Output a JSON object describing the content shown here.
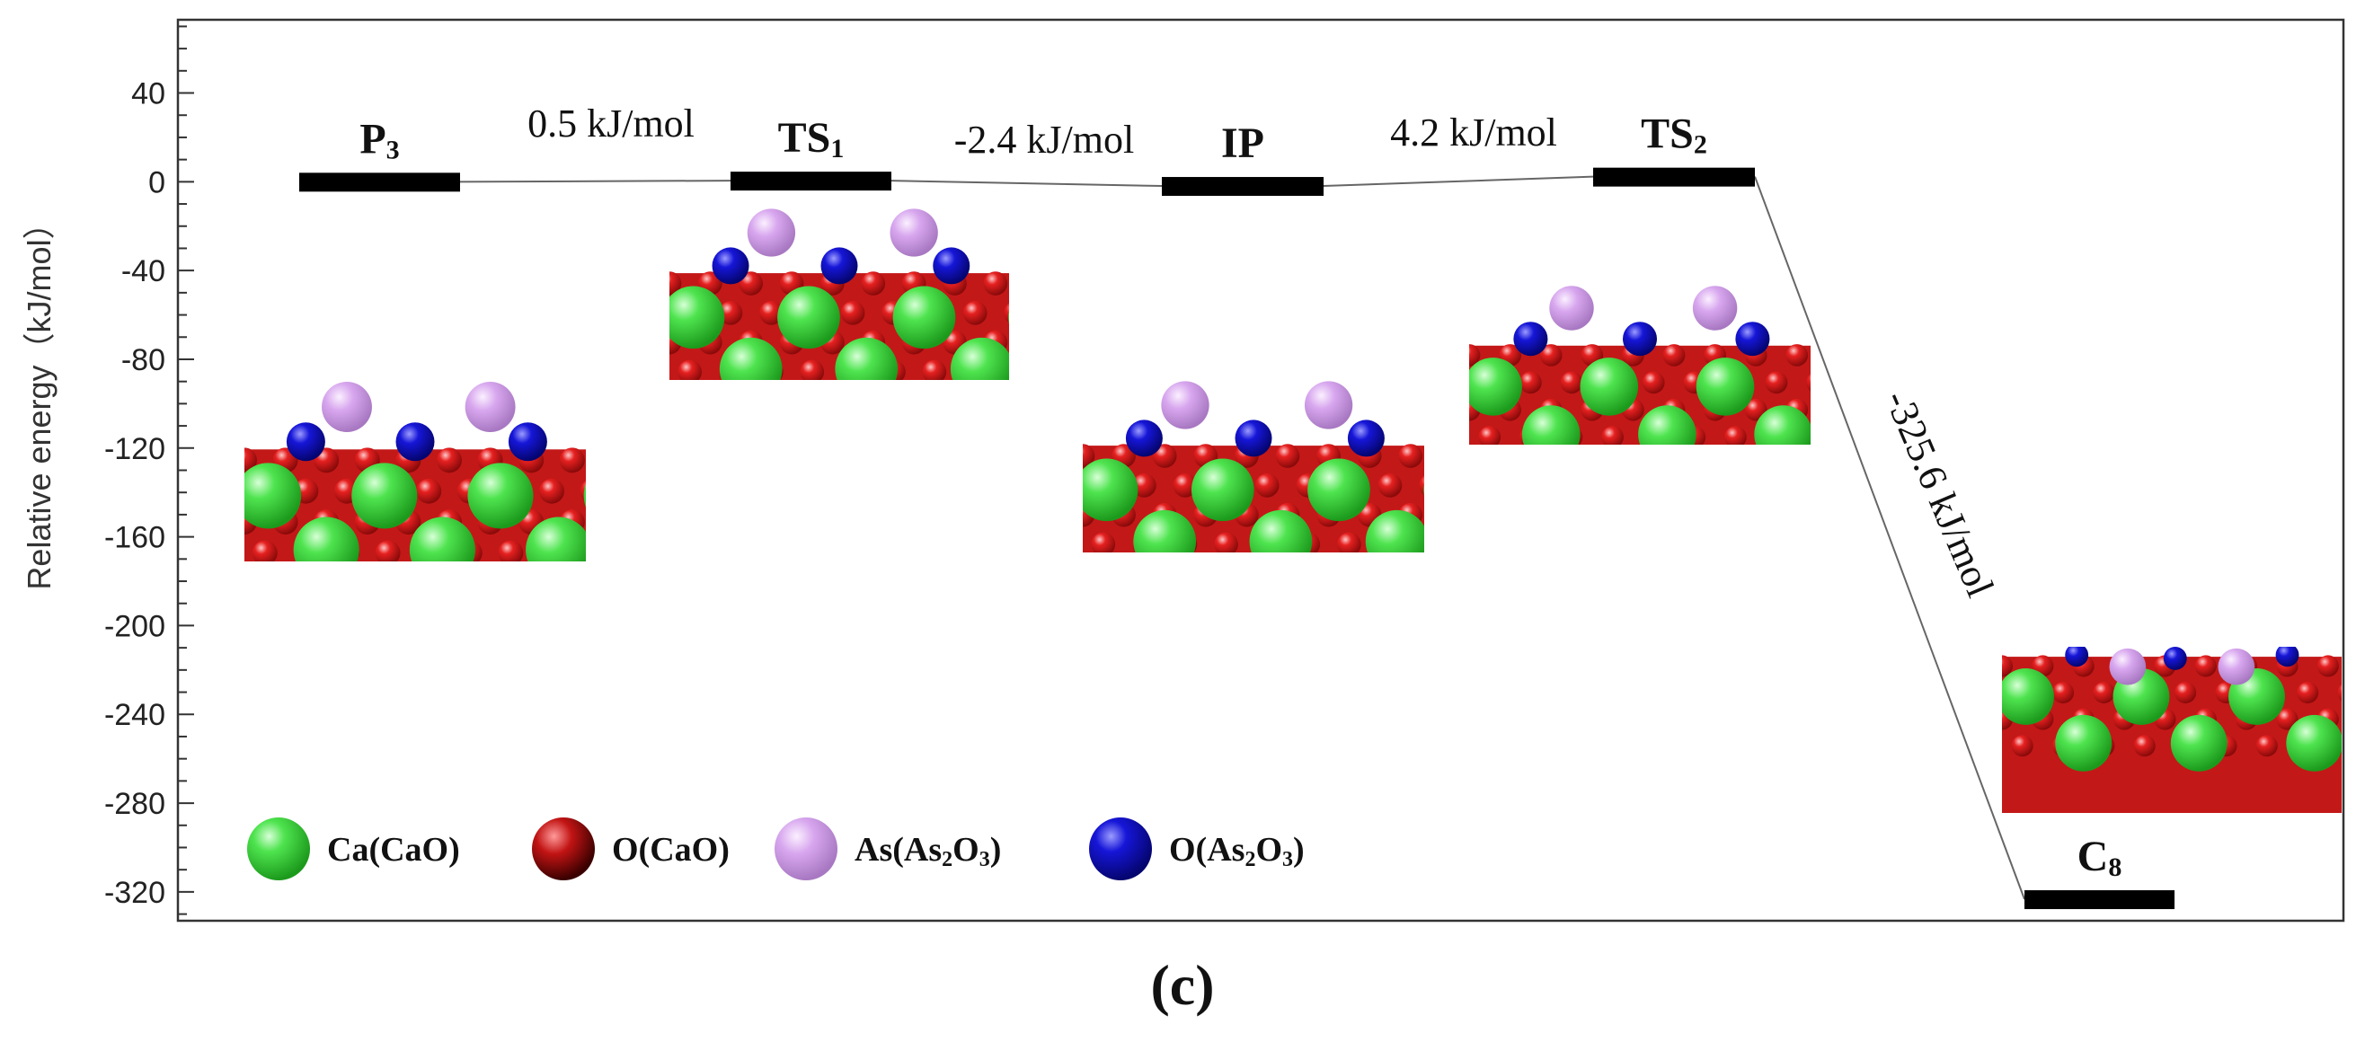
{
  "chart_data": {
    "type": "energy-profile",
    "ylabel": "Relative energy（kJ/mol）",
    "ylim": [
      -333,
      73
    ],
    "yticks": [
      40,
      0,
      -40,
      -80,
      -120,
      -160,
      -200,
      -240,
      -280,
      -320
    ],
    "states": [
      {
        "name": "P3",
        "base": "P",
        "sub": "3",
        "energy": 0
      },
      {
        "name": "TS1",
        "base": "TS",
        "sub": "1",
        "energy": 0.5
      },
      {
        "name": "IP",
        "base": "IP",
        "sub": "",
        "energy": -1.9
      },
      {
        "name": "TS2",
        "base": "TS",
        "sub": "2",
        "energy": 2.3
      },
      {
        "name": "C8",
        "base": "C",
        "sub": "8",
        "energy": -323.3
      }
    ],
    "transitions": [
      {
        "label": "0.5 kJ/mol",
        "value": 0.5
      },
      {
        "label": "-2.4 kJ/mol",
        "value": -2.4
      },
      {
        "label": "4.2 kJ/mol",
        "value": 4.2
      },
      {
        "label": "-325.6 kJ/mol",
        "value": -325.6
      }
    ],
    "legend": [
      {
        "label": "Ca(CaO)",
        "base": "Ca(CaO)",
        "sub": "",
        "tail": "",
        "color": "#3ee03e"
      },
      {
        "label": "O(CaO)",
        "base": "O(CaO)",
        "sub": "",
        "tail": "",
        "color": "#e62020"
      },
      {
        "label": "As(As2O3)",
        "base": "As(As",
        "sub": "2",
        "tail": "O",
        "sub2": "3",
        "end": ")",
        "color": "#d7a6ee"
      },
      {
        "label": "O(As2O3)",
        "base": "O(As",
        "sub": "2",
        "tail": "O",
        "sub2": "3",
        "end": ")",
        "color": "#1616d8"
      }
    ],
    "panel_label": "(c)"
  },
  "colors": {
    "ca": "#3ee03e",
    "o_cao": "#e62020",
    "as": "#d7a6ee",
    "o_as": "#1616d8"
  }
}
